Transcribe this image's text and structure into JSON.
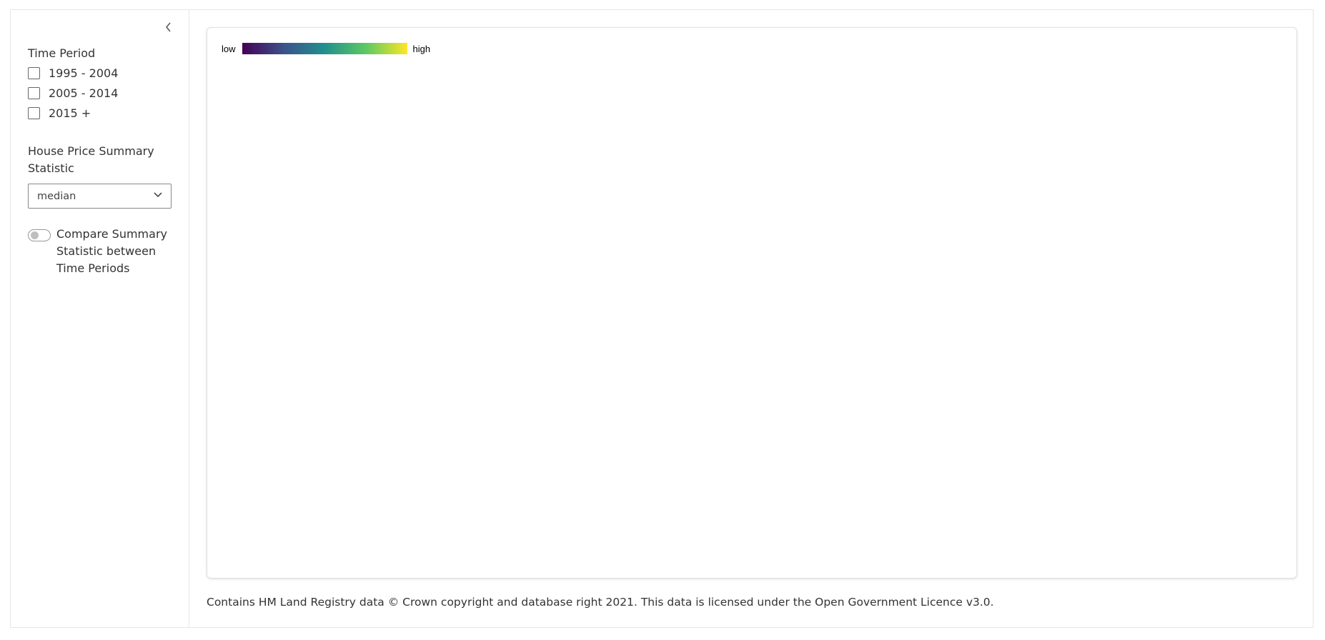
{
  "sidebar": {
    "collapse_icon": "chevron-left-icon",
    "time_period": {
      "label": "Time Period",
      "options": [
        {
          "label": "1995 - 2004",
          "checked": false
        },
        {
          "label": "2005 - 2014",
          "checked": false
        },
        {
          "label": "2015 +",
          "checked": false
        }
      ]
    },
    "summary_statistic": {
      "label_line1": "House Price Summary",
      "label_line2": "Statistic",
      "selected": "median"
    },
    "compare_toggle": {
      "label": "Compare Summary Statistic between Time Periods",
      "on": false
    }
  },
  "map": {
    "legend": {
      "low_label": "low",
      "high_label": "high",
      "gradient_colors": [
        "#440154",
        "#3b528b",
        "#21908d",
        "#5dc963",
        "#fde725"
      ]
    }
  },
  "footer": {
    "attribution": "Contains HM Land Registry data © Crown copyright and database right 2021. This data is licensed under the Open Government Licence v3.0."
  }
}
